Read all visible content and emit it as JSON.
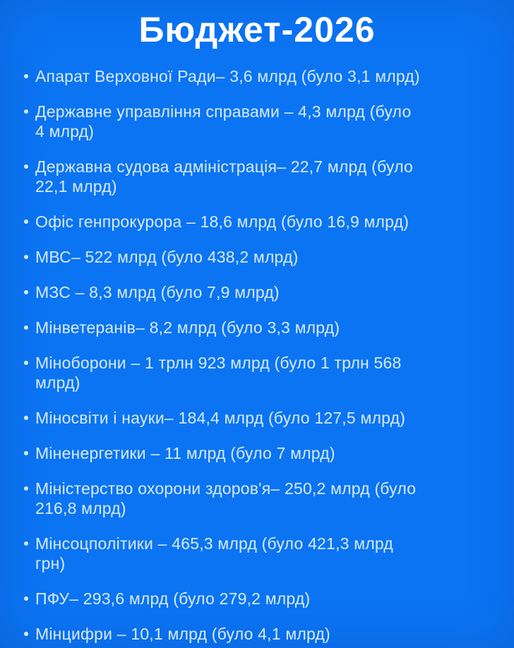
{
  "page": {
    "title": "Бюджет-2026",
    "colors": {
      "background": "#0b74f3",
      "title": "#ffffff",
      "text": "#d6eafc"
    },
    "list": {
      "items": [
        "Апарат Верховної Ради– 3,6 млрд (було 3,1 млрд)",
        "Державне управління справами – 4,3 млрд (було\n4 млрд)",
        "Державна судова адміністрація– 22,7 млрд (було\n22,1 млрд)",
        "Офіс генпрокурора – 18,6 млрд (було 16,9 млрд)",
        "МВС– 522 млрд (було 438,2 млрд)",
        "МЗС – 8,3 млрд (було 7,9 млрд)",
        "Мінветеранів– 8,2 млрд (було 3,3 млрд)",
        "Міноборони – 1 трлн 923 млрд (було 1 трлн 568\nмлрд)",
        "Міносвіти і науки– 184,4 млрд (було 127,5 млрд)",
        "Міненергетики – 11 млрд (було 7 млрд)",
        "Міністерство охорони здоров'я– 250,2 млрд (було\n216,8 млрд)",
        "Мінсоцполітики – 465,3 млрд (було 421,3 млрд\nгрн)",
        "ПФУ– 293,6 млрд (було 279,2 млрд)",
        "Мінцифри – 10,1 млрд (було 4,1 млрд)"
      ]
    }
  }
}
